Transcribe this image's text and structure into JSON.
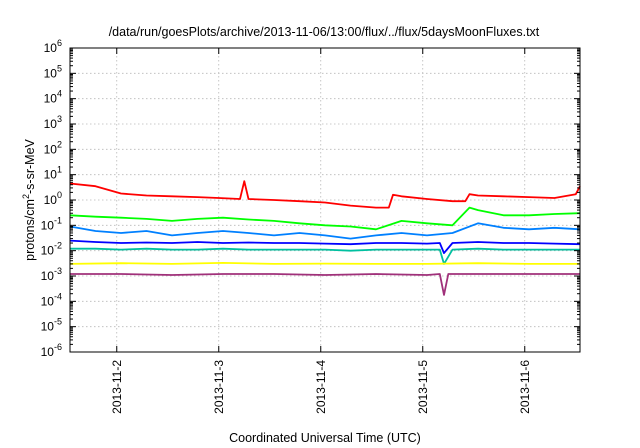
{
  "chart_data": {
    "type": "line",
    "title": "/data/run/goesPlots/archive/2013-11-06/13:00/flux/../flux/5daysMoonFluxes.txt",
    "xlabel": "Coordinated Universal Time (UTC)",
    "ylabel": {
      "base": "protons/cm",
      "sup": "2",
      "rest": "-s-sr-MeV"
    },
    "yscale": "log",
    "ylim": [
      1e-06,
      1000000.0
    ],
    "xlim": [
      "2013-11-01T13:00",
      "2013-11-06T13:00"
    ],
    "grid": true,
    "y_ticks": [
      {
        "value": 1e-06,
        "base": "10",
        "exp": "-6"
      },
      {
        "value": 1e-05,
        "base": "10",
        "exp": "-5"
      },
      {
        "value": 0.0001,
        "base": "10",
        "exp": "-4"
      },
      {
        "value": 0.001,
        "base": "10",
        "exp": "-3"
      },
      {
        "value": 0.01,
        "base": "10",
        "exp": "-2"
      },
      {
        "value": 0.1,
        "base": "10",
        "exp": "-1"
      },
      {
        "value": 1,
        "base": "10",
        "exp": "0"
      },
      {
        "value": 10.0,
        "base": "10",
        "exp": "1"
      },
      {
        "value": 100.0,
        "base": "10",
        "exp": "2"
      },
      {
        "value": 1000.0,
        "base": "10",
        "exp": "3"
      },
      {
        "value": 10000.0,
        "base": "10",
        "exp": "4"
      },
      {
        "value": 100000.0,
        "base": "10",
        "exp": "5"
      },
      {
        "value": 1000000.0,
        "base": "10",
        "exp": "6"
      }
    ],
    "x_ticks": [
      {
        "value": "2013-11-02T00:00",
        "label": "2013-11-2"
      },
      {
        "value": "2013-11-03T00:00",
        "label": "2013-11-3"
      },
      {
        "value": "2013-11-04T00:00",
        "label": "2013-11-4"
      },
      {
        "value": "2013-11-05T00:00",
        "label": "2013-11-5"
      },
      {
        "value": "2013-11-06T00:00",
        "label": "2013-11-6"
      }
    ],
    "series": [
      {
        "color": "#ff0000",
        "x": [
          "2013-11-01T13:00",
          "2013-11-01T19:00",
          "2013-11-02T01:00",
          "2013-11-02T07:00",
          "2013-11-02T13:00",
          "2013-11-02T19:00",
          "2013-11-03T00:00",
          "2013-11-03T05:00",
          "2013-11-03T06:00",
          "2013-11-03T07:00",
          "2013-11-03T13:00",
          "2013-11-03T19:00",
          "2013-11-04T01:00",
          "2013-11-04T07:00",
          "2013-11-04T13:00",
          "2013-11-04T16:00",
          "2013-11-04T17:00",
          "2013-11-04T19:00",
          "2013-11-05T01:00",
          "2013-11-05T07:00",
          "2013-11-05T10:00",
          "2013-11-05T11:00",
          "2013-11-05T13:00",
          "2013-11-05T19:00",
          "2013-11-06T01:00",
          "2013-11-06T07:00",
          "2013-11-06T12:00",
          "2013-11-06T13:00"
        ],
        "y": [
          4.5,
          3.5,
          1.8,
          1.5,
          1.4,
          1.3,
          1.2,
          1.1,
          5.5,
          1.1,
          1.0,
          0.9,
          0.8,
          0.6,
          0.5,
          0.5,
          1.6,
          1.4,
          1.1,
          0.9,
          0.9,
          1.7,
          1.5,
          1.4,
          1.3,
          1.2,
          1.7,
          3.5
        ]
      },
      {
        "color": "#00ff00",
        "x": [
          "2013-11-01T13:00",
          "2013-11-01T19:00",
          "2013-11-02T01:00",
          "2013-11-02T07:00",
          "2013-11-02T13:00",
          "2013-11-02T19:00",
          "2013-11-03T01:00",
          "2013-11-03T07:00",
          "2013-11-03T13:00",
          "2013-11-03T19:00",
          "2013-11-04T01:00",
          "2013-11-04T07:00",
          "2013-11-04T13:00",
          "2013-11-04T19:00",
          "2013-11-05T01:00",
          "2013-11-05T07:00",
          "2013-11-05T11:00",
          "2013-11-05T13:00",
          "2013-11-05T19:00",
          "2013-11-06T01:00",
          "2013-11-06T07:00",
          "2013-11-06T13:00"
        ],
        "y": [
          0.25,
          0.22,
          0.2,
          0.18,
          0.15,
          0.18,
          0.2,
          0.17,
          0.15,
          0.12,
          0.1,
          0.09,
          0.07,
          0.15,
          0.12,
          0.1,
          0.5,
          0.4,
          0.25,
          0.25,
          0.28,
          0.3
        ]
      },
      {
        "color": "#0080ff",
        "x": [
          "2013-11-01T13:00",
          "2013-11-01T19:00",
          "2013-11-02T01:00",
          "2013-11-02T07:00",
          "2013-11-02T13:00",
          "2013-11-02T19:00",
          "2013-11-03T01:00",
          "2013-11-03T07:00",
          "2013-11-03T13:00",
          "2013-11-03T19:00",
          "2013-11-04T01:00",
          "2013-11-04T07:00",
          "2013-11-04T13:00",
          "2013-11-04T19:00",
          "2013-11-05T01:00",
          "2013-11-05T07:00",
          "2013-11-05T13:00",
          "2013-11-05T19:00",
          "2013-11-06T01:00",
          "2013-11-06T07:00",
          "2013-11-06T13:00"
        ],
        "y": [
          0.09,
          0.06,
          0.05,
          0.06,
          0.04,
          0.05,
          0.06,
          0.05,
          0.04,
          0.05,
          0.04,
          0.03,
          0.04,
          0.05,
          0.04,
          0.05,
          0.12,
          0.08,
          0.07,
          0.08,
          0.07
        ]
      },
      {
        "color": "#0000ff",
        "x": [
          "2013-11-01T13:00",
          "2013-11-01T19:00",
          "2013-11-02T01:00",
          "2013-11-02T07:00",
          "2013-11-02T13:00",
          "2013-11-02T19:00",
          "2013-11-03T01:00",
          "2013-11-03T07:00",
          "2013-11-03T13:00",
          "2013-11-03T19:00",
          "2013-11-04T01:00",
          "2013-11-04T07:00",
          "2013-11-04T13:00",
          "2013-11-04T19:00",
          "2013-11-05T01:00",
          "2013-11-05T04:00",
          "2013-11-05T05:00",
          "2013-11-05T07:00",
          "2013-11-05T13:00",
          "2013-11-05T19:00",
          "2013-11-06T01:00",
          "2013-11-06T07:00",
          "2013-11-06T13:00"
        ],
        "y": [
          0.025,
          0.022,
          0.02,
          0.021,
          0.02,
          0.022,
          0.02,
          0.021,
          0.02,
          0.02,
          0.019,
          0.018,
          0.02,
          0.02,
          0.019,
          0.02,
          0.008,
          0.02,
          0.022,
          0.02,
          0.02,
          0.019,
          0.018
        ]
      },
      {
        "color": "#00c0a0",
        "x": [
          "2013-11-01T13:00",
          "2013-11-01T19:00",
          "2013-11-02T01:00",
          "2013-11-02T07:00",
          "2013-11-02T13:00",
          "2013-11-02T19:00",
          "2013-11-03T01:00",
          "2013-11-03T07:00",
          "2013-11-03T13:00",
          "2013-11-03T19:00",
          "2013-11-04T01:00",
          "2013-11-04T07:00",
          "2013-11-04T13:00",
          "2013-11-04T19:00",
          "2013-11-05T01:00",
          "2013-11-05T04:00",
          "2013-11-05T05:00",
          "2013-11-05T07:00",
          "2013-11-05T13:00",
          "2013-11-05T19:00",
          "2013-11-06T01:00",
          "2013-11-06T07:00",
          "2013-11-06T13:00"
        ],
        "y": [
          0.012,
          0.012,
          0.011,
          0.012,
          0.011,
          0.011,
          0.012,
          0.011,
          0.011,
          0.011,
          0.011,
          0.01,
          0.011,
          0.011,
          0.011,
          0.011,
          0.003,
          0.011,
          0.012,
          0.011,
          0.011,
          0.011,
          0.011
        ]
      },
      {
        "color": "#ffff00",
        "x": [
          "2013-11-01T13:00",
          "2013-11-02T01:00",
          "2013-11-02T13:00",
          "2013-11-03T01:00",
          "2013-11-03T13:00",
          "2013-11-04T01:00",
          "2013-11-04T13:00",
          "2013-11-05T01:00",
          "2013-11-05T13:00",
          "2013-11-06T01:00",
          "2013-11-06T13:00"
        ],
        "y": [
          0.003,
          0.0032,
          0.003,
          0.0033,
          0.003,
          0.0031,
          0.003,
          0.003,
          0.0032,
          0.003,
          0.003
        ]
      },
      {
        "color": "#a0307a",
        "x": [
          "2013-11-01T13:00",
          "2013-11-02T01:00",
          "2013-11-02T13:00",
          "2013-11-03T01:00",
          "2013-11-03T13:00",
          "2013-11-04T01:00",
          "2013-11-04T13:00",
          "2013-11-05T01:00",
          "2013-11-05T04:00",
          "2013-11-05T05:00",
          "2013-11-05T06:00",
          "2013-11-05T13:00",
          "2013-11-06T01:00",
          "2013-11-06T13:00"
        ],
        "y": [
          0.0012,
          0.0012,
          0.0011,
          0.0012,
          0.0012,
          0.0011,
          0.0012,
          0.0011,
          0.0012,
          0.00018,
          0.0012,
          0.0012,
          0.0012,
          0.0012
        ]
      }
    ]
  }
}
